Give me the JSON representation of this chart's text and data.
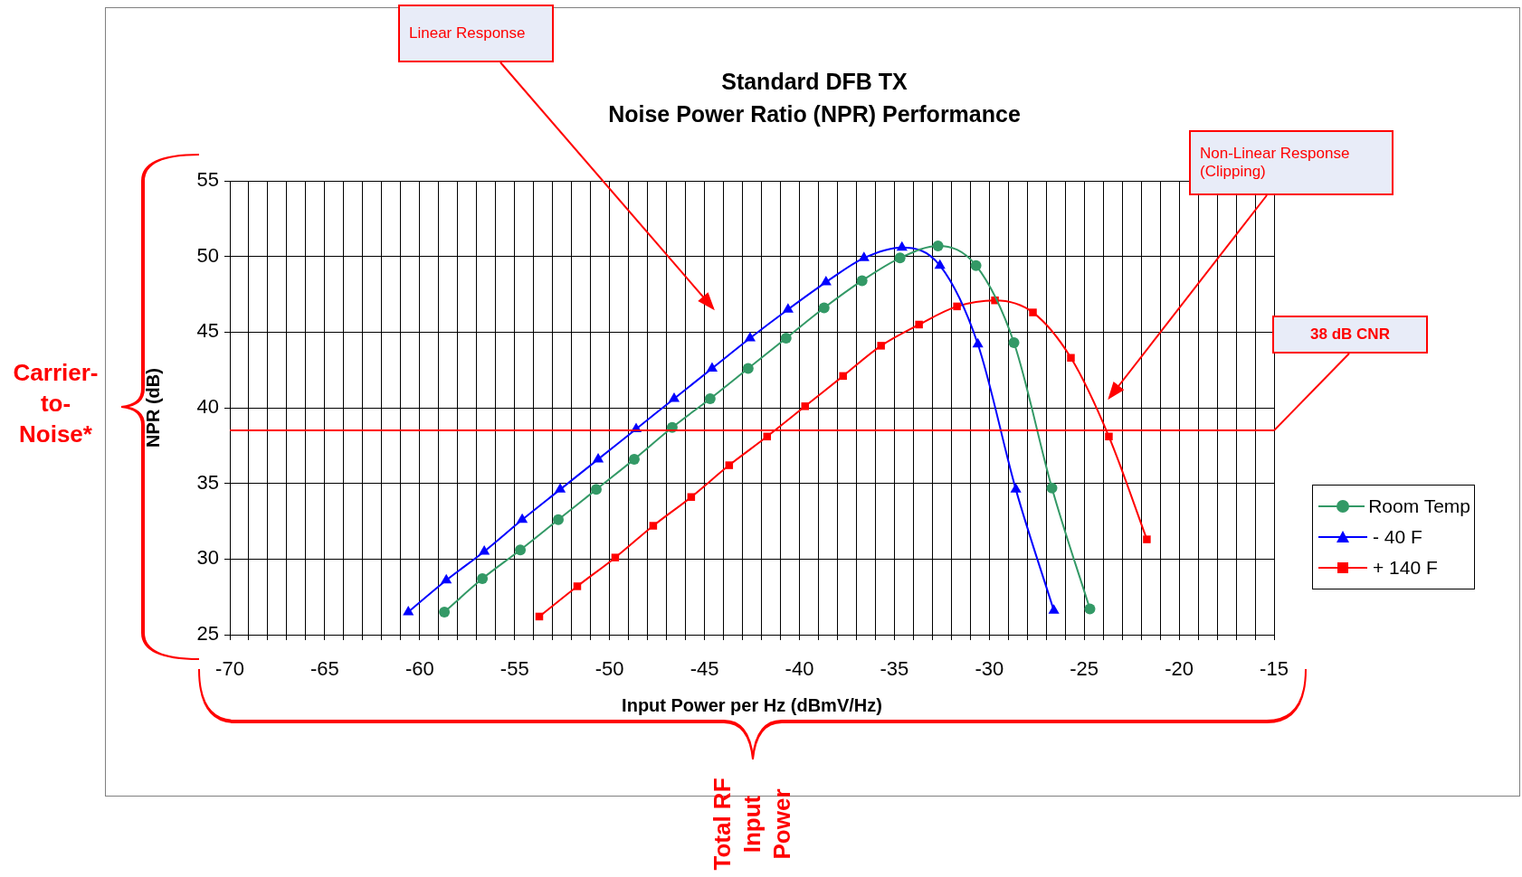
{
  "chart_data": {
    "type": "line",
    "title": "Standard DFB TX",
    "subtitle": "Noise Power Ratio (NPR) Performance",
    "xlabel": "Input Power per Hz (dBmV/Hz)",
    "ylabel": "NPR (dB)",
    "xlim": [
      -70,
      -15
    ],
    "xticks": [
      -70,
      {
        "value": -69,
        "label": null
      },
      {
        "value": -68,
        "label": null
      },
      {
        "value": -67,
        "label": null
      },
      {
        "value": -66,
        "label": null
      },
      -65,
      {
        "value": -64,
        "label": null
      },
      {
        "value": -63,
        "label": null
      },
      {
        "value": -62,
        "label": null
      },
      {
        "value": -61,
        "label": null
      },
      -60,
      {
        "value": -59,
        "label": null
      },
      {
        "value": -58,
        "label": null
      },
      {
        "value": -57,
        "label": null
      },
      {
        "value": -56,
        "label": null
      },
      -55,
      {
        "value": -54,
        "label": null
      },
      {
        "value": -53,
        "label": null
      },
      {
        "value": -52,
        "label": null
      },
      {
        "value": -51,
        "label": null
      },
      -50,
      {
        "value": -49,
        "label": null
      },
      {
        "value": -48,
        "label": null
      },
      {
        "value": -47,
        "label": null
      },
      {
        "value": -46,
        "label": null
      },
      -45,
      {
        "value": -44,
        "label": null
      },
      {
        "value": -43,
        "label": null
      },
      {
        "value": -42,
        "label": null
      },
      {
        "value": -41,
        "label": null
      },
      -40,
      {
        "value": -39,
        "label": null
      },
      {
        "value": -38,
        "label": null
      },
      {
        "value": -37,
        "label": null
      },
      {
        "value": -36,
        "label": null
      },
      -35,
      {
        "value": -34,
        "label": null
      },
      {
        "value": -33,
        "label": null
      },
      {
        "value": -32,
        "label": null
      },
      {
        "value": -31,
        "label": null
      },
      -30,
      {
        "value": -29,
        "label": null
      },
      {
        "value": -28,
        "label": null
      },
      {
        "value": -27,
        "label": null
      },
      {
        "value": -26,
        "label": null
      },
      -25,
      {
        "value": -24,
        "label": null
      },
      {
        "value": -23,
        "label": null
      },
      {
        "value": -22,
        "label": null
      },
      {
        "value": -21,
        "label": null
      },
      -20,
      {
        "value": -19,
        "label": null
      },
      {
        "value": -18,
        "label": null
      },
      {
        "value": -17,
        "label": null
      },
      {
        "value": -16,
        "label": null
      },
      -15
    ],
    "ylim": [
      25,
      55
    ],
    "yticks": [
      25,
      30,
      35,
      40,
      45,
      50,
      55
    ],
    "grid": true,
    "legend": "right",
    "line_style": "solid",
    "series": [
      {
        "name": "Room Temp",
        "color": "#339966",
        "marker": "circle",
        "x": [
          -58.7,
          -56.7,
          -54.7,
          -52.7,
          -50.7,
          -48.7,
          -46.7,
          -44.7,
          -42.7,
          -40.7,
          -38.7,
          -36.7,
          -34.7,
          -32.7,
          -30.7,
          -28.7,
          -26.7,
          -24.7
        ],
        "values": [
          26.5,
          28.7,
          30.6,
          32.6,
          34.6,
          36.6,
          38.7,
          40.6,
          42.6,
          44.6,
          46.6,
          48.4,
          49.9,
          50.7,
          49.4,
          44.3,
          34.7,
          26.7
        ]
      },
      {
        "name": "- 40 F",
        "color": "#0000ff",
        "marker": "triangle",
        "x": [
          -60.6,
          -58.6,
          -56.6,
          -54.6,
          -52.6,
          -50.6,
          -48.6,
          -46.6,
          -44.6,
          -42.6,
          -40.6,
          -38.6,
          -36.6,
          -34.6,
          -32.6,
          -30.6,
          -28.6,
          -26.6
        ],
        "values": [
          26.5,
          28.6,
          30.5,
          32.6,
          34.6,
          36.6,
          38.6,
          40.6,
          42.6,
          44.6,
          46.5,
          48.3,
          49.9,
          50.6,
          49.4,
          44.2,
          34.6,
          26.6
        ]
      },
      {
        "name": "+ 140 F",
        "color": "#ff0000",
        "marker": "square",
        "x": [
          -53.7,
          -51.7,
          -49.7,
          -47.7,
          -45.7,
          -43.7,
          -41.7,
          -39.7,
          -37.7,
          -35.7,
          -33.7,
          -31.7,
          -29.7,
          -27.7,
          -25.7,
          -23.7,
          -21.7
        ],
        "values": [
          26.2,
          28.2,
          30.1,
          32.2,
          34.1,
          36.2,
          38.1,
          40.1,
          42.1,
          44.1,
          45.5,
          46.7,
          47.1,
          46.3,
          43.3,
          38.1,
          31.3
        ]
      }
    ],
    "ref_lines": [
      {
        "axis": "y",
        "value": 38.5,
        "label": "38 dB CNR",
        "color": "#ff0000"
      }
    ],
    "annotations": [
      "Linear Response",
      "Non-Linear Response (Clipping)",
      "Carrier-to-Noise*",
      "Total RF Input Power"
    ]
  }
}
